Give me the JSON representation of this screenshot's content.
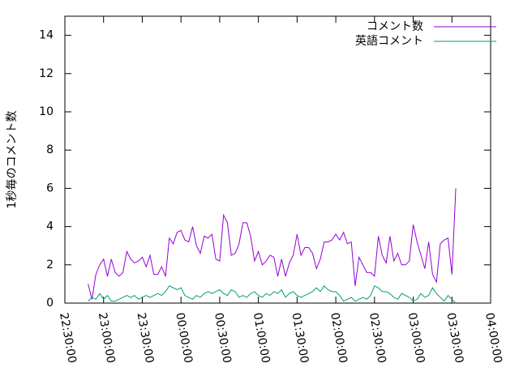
{
  "chart_data": {
    "type": "line",
    "y_label": "1秒毎のコメント数",
    "x": [
      "22:48:00",
      "22:51:00",
      "22:54:00",
      "22:57:00",
      "23:00:00",
      "23:03:00",
      "23:06:00",
      "23:09:00",
      "23:12:00",
      "23:15:00",
      "23:18:00",
      "23:21:00",
      "23:24:00",
      "23:27:00",
      "23:30:00",
      "23:33:00",
      "23:36:00",
      "23:39:00",
      "23:42:00",
      "23:45:00",
      "23:48:00",
      "23:51:00",
      "23:54:00",
      "23:57:00",
      "00:00:00",
      "00:03:00",
      "00:06:00",
      "00:09:00",
      "00:12:00",
      "00:15:00",
      "00:18:00",
      "00:21:00",
      "00:24:00",
      "00:27:00",
      "00:30:00",
      "00:33:00",
      "00:36:00",
      "00:39:00",
      "00:42:00",
      "00:45:00",
      "00:48:00",
      "00:51:00",
      "00:54:00",
      "00:57:00",
      "01:00:00",
      "01:03:00",
      "01:06:00",
      "01:09:00",
      "01:12:00",
      "01:15:00",
      "01:18:00",
      "01:21:00",
      "01:24:00",
      "01:27:00",
      "01:30:00",
      "01:33:00",
      "01:36:00",
      "01:39:00",
      "01:42:00",
      "01:45:00",
      "01:48:00",
      "01:51:00",
      "01:54:00",
      "01:57:00",
      "02:00:00",
      "02:03:00",
      "02:06:00",
      "02:09:00",
      "02:12:00",
      "02:15:00",
      "02:18:00",
      "02:21:00",
      "02:24:00",
      "02:27:00",
      "02:30:00",
      "02:33:00",
      "02:36:00",
      "02:39:00",
      "02:42:00",
      "02:45:00",
      "02:48:00",
      "02:51:00",
      "02:54:00",
      "02:57:00",
      "03:00:00",
      "03:03:00",
      "03:06:00",
      "03:09:00",
      "03:12:00",
      "03:15:00",
      "03:18:00",
      "03:21:00",
      "03:24:00",
      "03:27:00",
      "03:30:00",
      "03:33:00"
    ],
    "series": [
      {
        "name": "コメント数",
        "color": "#9400d3",
        "values": [
          1.0,
          0.2,
          1.5,
          2.0,
          2.3,
          1.4,
          2.3,
          1.6,
          1.4,
          1.6,
          2.7,
          2.3,
          2.1,
          2.2,
          2.4,
          1.9,
          2.5,
          1.5,
          1.5,
          1.9,
          1.4,
          3.4,
          3.1,
          3.7,
          3.8,
          3.3,
          3.2,
          4.0,
          3.0,
          2.6,
          3.5,
          3.4,
          3.6,
          2.3,
          2.2,
          4.6,
          4.2,
          2.5,
          2.6,
          3.1,
          4.2,
          4.2,
          3.5,
          2.2,
          2.7,
          2.0,
          2.2,
          2.5,
          2.4,
          1.4,
          2.3,
          1.4,
          2.1,
          2.5,
          3.6,
          2.5,
          2.9,
          2.9,
          2.6,
          1.8,
          2.3,
          3.2,
          3.2,
          3.3,
          3.6,
          3.3,
          3.7,
          3.1,
          3.2,
          0.9,
          2.4,
          2.0,
          1.6,
          1.6,
          1.4,
          3.5,
          2.5,
          2.1,
          3.5,
          2.2,
          2.6,
          2.0,
          2.0,
          2.2,
          4.1,
          3.2,
          2.5,
          1.8,
          3.2,
          1.5,
          1.1,
          3.1,
          3.3,
          3.4,
          1.5,
          6.0
        ]
      },
      {
        "name": "英語コメント",
        "color": "#009e73",
        "values": [
          0.1,
          0.3,
          0.2,
          0.5,
          0.2,
          0.4,
          0.1,
          0.1,
          0.2,
          0.3,
          0.4,
          0.3,
          0.4,
          0.2,
          0.3,
          0.4,
          0.3,
          0.4,
          0.5,
          0.4,
          0.6,
          0.9,
          0.8,
          0.7,
          0.8,
          0.4,
          0.3,
          0.2,
          0.4,
          0.3,
          0.5,
          0.6,
          0.5,
          0.6,
          0.7,
          0.5,
          0.4,
          0.7,
          0.6,
          0.3,
          0.4,
          0.3,
          0.5,
          0.6,
          0.4,
          0.3,
          0.5,
          0.4,
          0.6,
          0.5,
          0.7,
          0.3,
          0.5,
          0.6,
          0.4,
          0.3,
          0.4,
          0.5,
          0.6,
          0.8,
          0.6,
          0.9,
          0.7,
          0.6,
          0.6,
          0.4,
          0.1,
          0.2,
          0.3,
          0.1,
          0.2,
          0.3,
          0.2,
          0.4,
          0.9,
          0.8,
          0.6,
          0.6,
          0.5,
          0.3,
          0.2,
          0.5,
          0.4,
          0.3,
          0.1,
          0.2,
          0.5,
          0.3,
          0.4,
          0.8,
          0.5,
          0.3,
          0.1,
          0.4,
          0.2,
          0.0
        ]
      }
    ],
    "xlim": [
      "22:30:00",
      "04:00:00"
    ],
    "xticks": [
      "22:30:00",
      "23:00:00",
      "23:30:00",
      "00:00:00",
      "00:30:00",
      "01:00:00",
      "01:30:00",
      "02:00:00",
      "02:30:00",
      "03:00:00",
      "03:30:00",
      "04:00:00"
    ],
    "ylim": [
      0,
      15
    ],
    "yticks": [
      0,
      2,
      4,
      6,
      8,
      10,
      12,
      14
    ],
    "legend": "top-right"
  }
}
